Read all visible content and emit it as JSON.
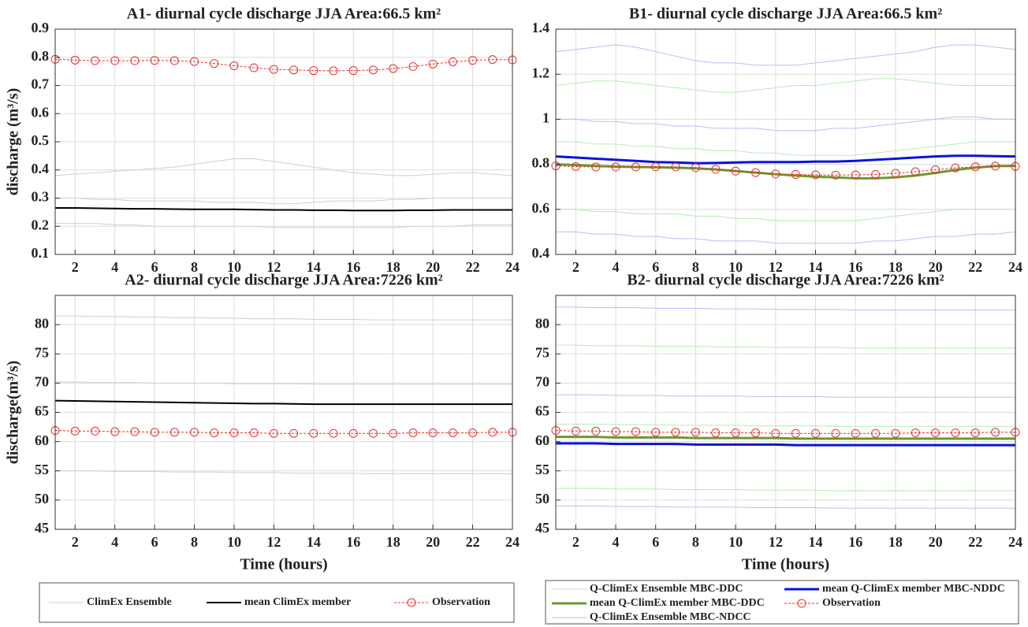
{
  "chart_data": [
    {
      "type": "line",
      "title": "A1- diurnal cycle discharge JJA  Area:66.5 km²",
      "ylabel": "discharge (m³/s)",
      "x": [
        1,
        2,
        3,
        4,
        5,
        6,
        7,
        8,
        9,
        10,
        11,
        12,
        13,
        14,
        15,
        16,
        17,
        18,
        19,
        20,
        21,
        22,
        23,
        24
      ],
      "xlim": [
        1,
        24
      ],
      "xticks": [
        2,
        4,
        6,
        8,
        10,
        12,
        14,
        16,
        18,
        20,
        22,
        24
      ],
      "ylim": [
        0.1,
        0.9
      ],
      "yticks": [
        0.1,
        0.2,
        0.3,
        0.4,
        0.5,
        0.6,
        0.7,
        0.8,
        0.9
      ],
      "grid": true,
      "series": [
        {
          "name": "ClimEx Ensemble",
          "color": "#cfcfcf",
          "members": [
            [
              0.38,
              0.385,
              0.39,
              0.395,
              0.4,
              0.405,
              0.41,
              0.42,
              0.43,
              0.44,
              0.44,
              0.43,
              0.42,
              0.41,
              0.4,
              0.39,
              0.385,
              0.38,
              0.38,
              0.385,
              0.39,
              0.39,
              0.385,
              0.38
            ],
            [
              0.3,
              0.3,
              0.295,
              0.295,
              0.29,
              0.29,
              0.29,
              0.29,
              0.285,
              0.285,
              0.285,
              0.28,
              0.28,
              0.285,
              0.29,
              0.29,
              0.29,
              0.295,
              0.295,
              0.3,
              0.3,
              0.3,
              0.3,
              0.3
            ],
            [
              0.21,
              0.21,
              0.21,
              0.205,
              0.205,
              0.2,
              0.2,
              0.2,
              0.2,
              0.2,
              0.2,
              0.195,
              0.195,
              0.195,
              0.195,
              0.195,
              0.195,
              0.195,
              0.2,
              0.2,
              0.2,
              0.205,
              0.205,
              0.205
            ]
          ]
        },
        {
          "name": "mean ClimEx member",
          "color": "#000000",
          "line_width": 2,
          "values": [
            0.265,
            0.265,
            0.264,
            0.263,
            0.262,
            0.262,
            0.261,
            0.26,
            0.26,
            0.26,
            0.259,
            0.258,
            0.258,
            0.257,
            0.257,
            0.256,
            0.256,
            0.256,
            0.257,
            0.257,
            0.258,
            0.258,
            0.258,
            0.258
          ]
        },
        {
          "name": "Observation",
          "color": "#e8302a",
          "dashed": true,
          "marker": "circle",
          "values": [
            0.793,
            0.79,
            0.788,
            0.788,
            0.788,
            0.789,
            0.788,
            0.785,
            0.778,
            0.77,
            0.763,
            0.757,
            0.755,
            0.753,
            0.752,
            0.753,
            0.755,
            0.76,
            0.767,
            0.776,
            0.784,
            0.789,
            0.792,
            0.791
          ]
        }
      ]
    },
    {
      "type": "line",
      "title": "B1- diurnal cycle discharge JJA  Area:66.5 km²",
      "x": [
        1,
        2,
        3,
        4,
        5,
        6,
        7,
        8,
        9,
        10,
        11,
        12,
        13,
        14,
        15,
        16,
        17,
        18,
        19,
        20,
        21,
        22,
        23,
        24
      ],
      "xlim": [
        1,
        24
      ],
      "xticks": [
        2,
        4,
        6,
        8,
        10,
        12,
        14,
        16,
        18,
        20,
        22,
        24
      ],
      "ylim": [
        0.4,
        1.4
      ],
      "yticks": [
        0.4,
        0.6,
        0.8,
        1,
        1.2,
        1.4
      ],
      "grid": true,
      "series": [
        {
          "name": "Q-ClimEx Ensemble MBC-DDC",
          "color": "#b6ebb0",
          "members": [
            [
              1.15,
              1.16,
              1.17,
              1.17,
              1.16,
              1.15,
              1.14,
              1.13,
              1.12,
              1.12,
              1.13,
              1.14,
              1.15,
              1.15,
              1.16,
              1.17,
              1.18,
              1.18,
              1.17,
              1.16,
              1.15,
              1.15,
              1.15,
              1.15
            ],
            [
              0.9,
              0.9,
              0.89,
              0.89,
              0.88,
              0.88,
              0.87,
              0.87,
              0.86,
              0.86,
              0.85,
              0.85,
              0.84,
              0.84,
              0.84,
              0.84,
              0.85,
              0.86,
              0.87,
              0.88,
              0.89,
              0.9,
              0.9,
              0.9
            ],
            [
              0.6,
              0.6,
              0.59,
              0.59,
              0.58,
              0.58,
              0.58,
              0.57,
              0.57,
              0.56,
              0.56,
              0.55,
              0.55,
              0.55,
              0.55,
              0.55,
              0.56,
              0.57,
              0.58,
              0.59,
              0.6,
              0.6,
              0.6,
              0.6
            ]
          ]
        },
        {
          "name": "Q-ClimEx Ensemble MBC-NDCC",
          "color": "#bdbdf2",
          "members": [
            [
              1.3,
              1.31,
              1.32,
              1.33,
              1.32,
              1.3,
              1.28,
              1.26,
              1.25,
              1.25,
              1.24,
              1.24,
              1.24,
              1.25,
              1.26,
              1.27,
              1.28,
              1.29,
              1.3,
              1.32,
              1.33,
              1.33,
              1.32,
              1.31
            ],
            [
              1,
              1,
              0.99,
              0.99,
              0.98,
              0.98,
              0.97,
              0.97,
              0.96,
              0.96,
              0.96,
              0.95,
              0.95,
              0.95,
              0.96,
              0.96,
              0.97,
              0.98,
              0.99,
              1,
              1.01,
              1.01,
              1,
              1
            ],
            [
              0.5,
              0.5,
              0.49,
              0.49,
              0.48,
              0.48,
              0.47,
              0.47,
              0.46,
              0.46,
              0.46,
              0.45,
              0.45,
              0.45,
              0.45,
              0.45,
              0.46,
              0.46,
              0.47,
              0.48,
              0.48,
              0.49,
              0.49,
              0.5
            ]
          ]
        },
        {
          "name": "mean Q-ClimEx member MBC-DDC",
          "color": "#6a9a2c",
          "line_width": 3,
          "values": [
            0.8,
            0.797,
            0.793,
            0.79,
            0.788,
            0.787,
            0.785,
            0.782,
            0.777,
            0.77,
            0.763,
            0.756,
            0.75,
            0.745,
            0.742,
            0.738,
            0.738,
            0.742,
            0.75,
            0.762,
            0.775,
            0.785,
            0.792,
            0.793
          ]
        },
        {
          "name": "mean Q-ClimEx member MBC-NDDC",
          "color": "#0a14d8",
          "line_width": 3,
          "values": [
            0.835,
            0.83,
            0.825,
            0.82,
            0.815,
            0.81,
            0.808,
            0.805,
            0.806,
            0.808,
            0.81,
            0.81,
            0.81,
            0.812,
            0.812,
            0.815,
            0.82,
            0.825,
            0.83,
            0.835,
            0.838,
            0.838,
            0.836,
            0.835
          ]
        },
        {
          "name": "Observation",
          "color": "#e8302a",
          "dashed": true,
          "marker": "circle",
          "values": [
            0.793,
            0.79,
            0.788,
            0.788,
            0.788,
            0.789,
            0.788,
            0.785,
            0.778,
            0.77,
            0.763,
            0.757,
            0.755,
            0.753,
            0.752,
            0.753,
            0.755,
            0.76,
            0.767,
            0.776,
            0.784,
            0.789,
            0.792,
            0.791
          ]
        }
      ]
    },
    {
      "type": "line",
      "title": "A2- diurnal cycle discharge JJA   Area:7226 km²",
      "ylabel": "discharge(m³/s)",
      "xlabel": "Time (hours)",
      "x": [
        1,
        2,
        3,
        4,
        5,
        6,
        7,
        8,
        9,
        10,
        11,
        12,
        13,
        14,
        15,
        16,
        17,
        18,
        19,
        20,
        21,
        22,
        23,
        24
      ],
      "xlim": [
        1,
        24
      ],
      "xticks": [
        2,
        4,
        6,
        8,
        10,
        12,
        14,
        16,
        18,
        20,
        22,
        24
      ],
      "ylim": [
        45,
        85
      ],
      "yticks": [
        45,
        50,
        55,
        60,
        65,
        70,
        75,
        80
      ],
      "grid": true,
      "series": [
        {
          "name": "ClimEx Ensemble",
          "color": "#cfcfcf",
          "members": [
            [
              81.5,
              81.5,
              81.4,
              81.4,
              81.3,
              81.3,
              81.2,
              81.2,
              81.1,
              81.1,
              81,
              81,
              81,
              80.9,
              80.9,
              80.9,
              80.8,
              80.8,
              80.8,
              80.8,
              80.8,
              80.8,
              80.8,
              80.8
            ],
            [
              70.2,
              70.2,
              70.1,
              70.1,
              70.1,
              70,
              70,
              70,
              70,
              69.9,
              69.9,
              69.9,
              69.9,
              69.8,
              69.8,
              69.8,
              69.8,
              69.8,
              69.8,
              69.8,
              69.8,
              69.8,
              69.8,
              69.8
            ],
            [
              55,
              55,
              55,
              54.9,
              54.9,
              54.9,
              54.8,
              54.8,
              54.8,
              54.7,
              54.7,
              54.7,
              54.6,
              54.6,
              54.6,
              54.6,
              54.5,
              54.5,
              54.5,
              54.5,
              54.5,
              54.5,
              54.5,
              54.5
            ]
          ]
        },
        {
          "name": "mean ClimEx member",
          "color": "#000000",
          "line_width": 2,
          "values": [
            67,
            66.95,
            66.9,
            66.85,
            66.8,
            66.75,
            66.7,
            66.65,
            66.6,
            66.55,
            66.5,
            66.5,
            66.45,
            66.4,
            66.4,
            66.4,
            66.4,
            66.4,
            66.4,
            66.4,
            66.4,
            66.4,
            66.4,
            66.4
          ]
        },
        {
          "name": "Observation",
          "color": "#e8302a",
          "dashed": true,
          "marker": "circle",
          "values": [
            61.9,
            61.8,
            61.8,
            61.7,
            61.7,
            61.6,
            61.6,
            61.6,
            61.5,
            61.5,
            61.5,
            61.4,
            61.4,
            61.4,
            61.4,
            61.4,
            61.4,
            61.4,
            61.5,
            61.5,
            61.5,
            61.5,
            61.6,
            61.6
          ]
        }
      ]
    },
    {
      "type": "line",
      "title": "B2- diurnal cycle discharge JJA   Area:7226 km²",
      "xlabel": "Time (hours)",
      "x": [
        1,
        2,
        3,
        4,
        5,
        6,
        7,
        8,
        9,
        10,
        11,
        12,
        13,
        14,
        15,
        16,
        17,
        18,
        19,
        20,
        21,
        22,
        23,
        24
      ],
      "xlim": [
        1,
        24
      ],
      "xticks": [
        2,
        4,
        6,
        8,
        10,
        12,
        14,
        16,
        18,
        20,
        22,
        24
      ],
      "ylim": [
        45,
        85
      ],
      "yticks": [
        45,
        50,
        55,
        60,
        65,
        70,
        75,
        80
      ],
      "grid": true,
      "series": [
        {
          "name": "Q-ClimEx Ensemble MBC-DDC",
          "color": "#b6ebb0",
          "members": [
            [
              76.5,
              76.5,
              76.4,
              76.4,
              76.4,
              76.3,
              76.3,
              76.3,
              76.2,
              76.2,
              76.2,
              76.1,
              76.1,
              76.1,
              76.1,
              76,
              76,
              76,
              76,
              76,
              76,
              76,
              76,
              76
            ],
            [
              63,
              63,
              63,
              62.9,
              62.9,
              62.9,
              62.8,
              62.8,
              62.8,
              62.8,
              62.7,
              62.7,
              62.7,
              62.7,
              62.6,
              62.6,
              62.6,
              62.6,
              62.6,
              62.6,
              62.6,
              62.6,
              62.6,
              62.6
            ],
            [
              52,
              52,
              52,
              51.9,
              51.9,
              51.9,
              51.8,
              51.8,
              51.8,
              51.8,
              51.7,
              51.7,
              51.7,
              51.7,
              51.6,
              51.6,
              51.6,
              51.6,
              51.6,
              51.6,
              51.6,
              51.6,
              51.6,
              51.6
            ]
          ]
        },
        {
          "name": "Q-ClimEx Ensemble MBC-NDCC",
          "color": "#bdbdf2",
          "members": [
            [
              83,
              83,
              82.9,
              82.9,
              82.9,
              82.8,
              82.8,
              82.8,
              82.7,
              82.7,
              82.7,
              82.6,
              82.6,
              82.6,
              82.6,
              82.5,
              82.5,
              82.5,
              82.5,
              82.5,
              82.5,
              82.5,
              82.5,
              82.5
            ],
            [
              68,
              68,
              68,
              67.9,
              67.9,
              67.9,
              67.8,
              67.8,
              67.8,
              67.8,
              67.7,
              67.7,
              67.7,
              67.7,
              67.6,
              67.6,
              67.6,
              67.6,
              67.6,
              67.6,
              67.6,
              67.6,
              67.6,
              67.6
            ],
            [
              49,
              49,
              49,
              48.9,
              48.9,
              48.9,
              48.8,
              48.8,
              48.8,
              48.8,
              48.7,
              48.7,
              48.7,
              48.7,
              48.6,
              48.6,
              48.6,
              48.6,
              48.6,
              48.6,
              48.6,
              48.6,
              48.6,
              48.6
            ]
          ]
        },
        {
          "name": "mean Q-ClimEx member MBC-DDC",
          "color": "#6a9a2c",
          "line_width": 3,
          "values": [
            60.8,
            60.8,
            60.8,
            60.7,
            60.7,
            60.7,
            60.7,
            60.6,
            60.6,
            60.6,
            60.6,
            60.6,
            60.5,
            60.5,
            60.5,
            60.5,
            60.5,
            60.5,
            60.5,
            60.5,
            60.5,
            60.5,
            60.5,
            60.5
          ]
        },
        {
          "name": "mean Q-ClimEx member MBC-NDDC",
          "color": "#0a14d8",
          "line_width": 3,
          "values": [
            59.7,
            59.7,
            59.7,
            59.6,
            59.6,
            59.6,
            59.6,
            59.5,
            59.5,
            59.5,
            59.5,
            59.5,
            59.4,
            59.4,
            59.4,
            59.4,
            59.4,
            59.4,
            59.4,
            59.4,
            59.4,
            59.4,
            59.4,
            59.4
          ]
        },
        {
          "name": "Observation",
          "color": "#e8302a",
          "dashed": true,
          "marker": "circle",
          "values": [
            61.9,
            61.8,
            61.8,
            61.7,
            61.7,
            61.6,
            61.6,
            61.6,
            61.5,
            61.5,
            61.5,
            61.4,
            61.4,
            61.4,
            61.4,
            61.4,
            61.4,
            61.4,
            61.5,
            61.5,
            61.5,
            61.5,
            61.6,
            61.6
          ]
        }
      ]
    }
  ]
}
